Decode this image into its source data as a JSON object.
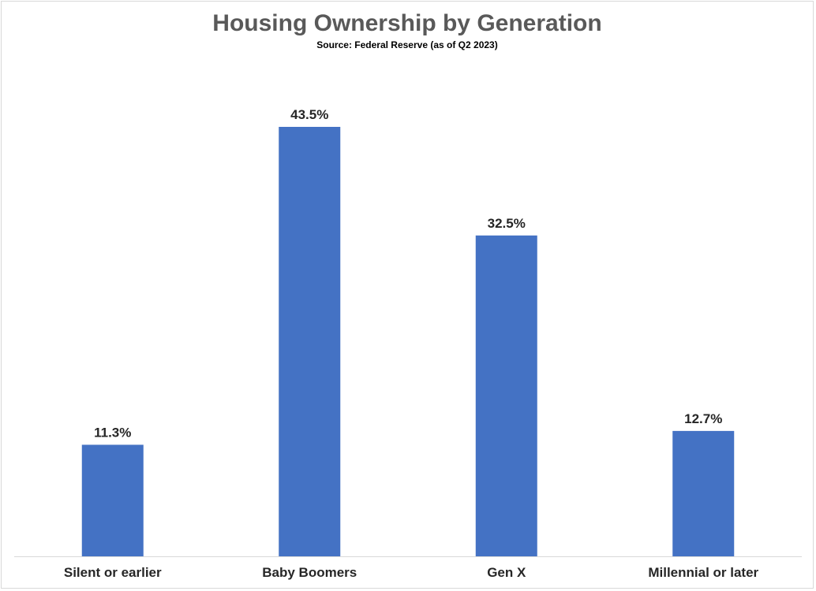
{
  "chart_data": {
    "type": "bar",
    "title": "Housing Ownership by Generation",
    "subtitle": "Source: Federal Reserve (as of Q2 2023)",
    "categories": [
      "Silent or earlier",
      "Baby Boomers",
      "Gen X",
      "Millennial or later"
    ],
    "values": [
      11.3,
      43.5,
      32.5,
      12.7
    ],
    "value_labels": [
      "11.3%",
      "43.5%",
      "32.5%",
      "12.7%"
    ],
    "unit": "%",
    "ylim": [
      0,
      50
    ],
    "grid": false,
    "legend": "none",
    "bar_color": "#4472C4",
    "axis_color": "#D9D9D9"
  }
}
